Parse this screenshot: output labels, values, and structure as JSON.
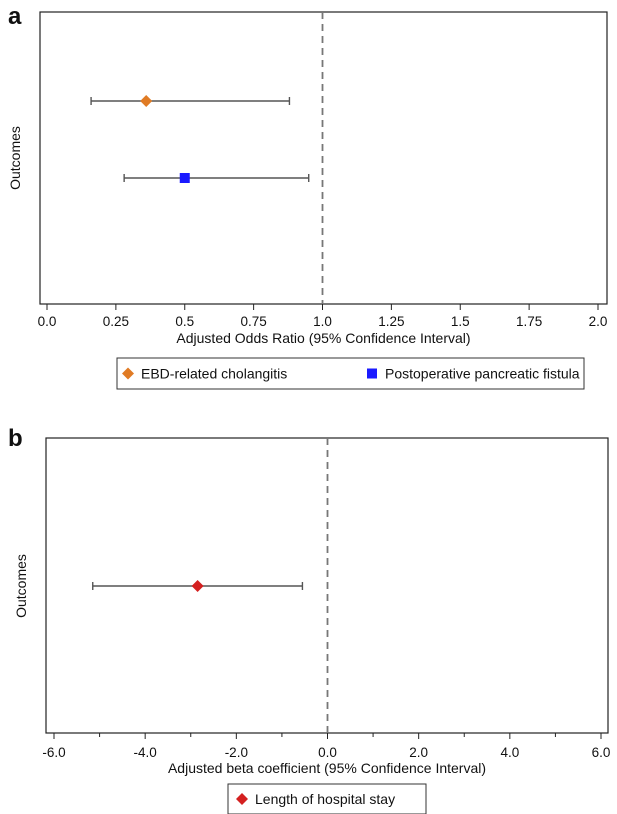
{
  "chart_data": [
    {
      "type": "forest",
      "panel_label": "a",
      "ylabel": "Outcomes",
      "xlabel": "Adjusted Odds Ratio (95% Confidence Interval)",
      "xlim": [
        0.0,
        2.0
      ],
      "xticks": [
        0.0,
        0.25,
        0.5,
        0.75,
        1.0,
        1.25,
        1.5,
        1.75,
        2.0
      ],
      "xtick_labels": [
        "0.0",
        "0.25",
        "0.5",
        "0.75",
        "1.0",
        "1.25",
        "1.5",
        "1.75",
        "2.0"
      ],
      "reference_line": 1.0,
      "grid": false,
      "legend_position": "bottom",
      "series": [
        {
          "name": "EBD-related cholangitis",
          "estimate": 0.36,
          "ci_low": 0.16,
          "ci_high": 0.88,
          "marker": "diamond",
          "color": "#e07b24",
          "row": 1
        },
        {
          "name": "Postoperative pancreatic fistula",
          "estimate": 0.5,
          "ci_low": 0.28,
          "ci_high": 0.95,
          "marker": "square",
          "color": "#1a1aff",
          "row": 2
        }
      ]
    },
    {
      "type": "forest",
      "panel_label": "b",
      "ylabel": "Outcomes",
      "xlabel": "Adjusted beta coefficient (95% Confidence Interval)",
      "xlim": [
        -6.0,
        6.0
      ],
      "xticks": [
        -6.0,
        -4.0,
        -2.0,
        0.0,
        2.0,
        4.0,
        6.0
      ],
      "xtick_labels": [
        "-6.0",
        "-4.0",
        "-2.0",
        "0.0",
        "2.0",
        "4.0",
        "6.0"
      ],
      "minor_xticks": [
        -5.0,
        -3.0,
        -1.0,
        1.0,
        3.0,
        5.0
      ],
      "reference_line": 0.0,
      "grid": false,
      "legend_position": "bottom",
      "series": [
        {
          "name": "Length of hospital stay",
          "estimate": -2.85,
          "ci_low": -5.15,
          "ci_high": -0.55,
          "marker": "diamond",
          "color": "#d42020",
          "row": 1
        }
      ]
    }
  ]
}
